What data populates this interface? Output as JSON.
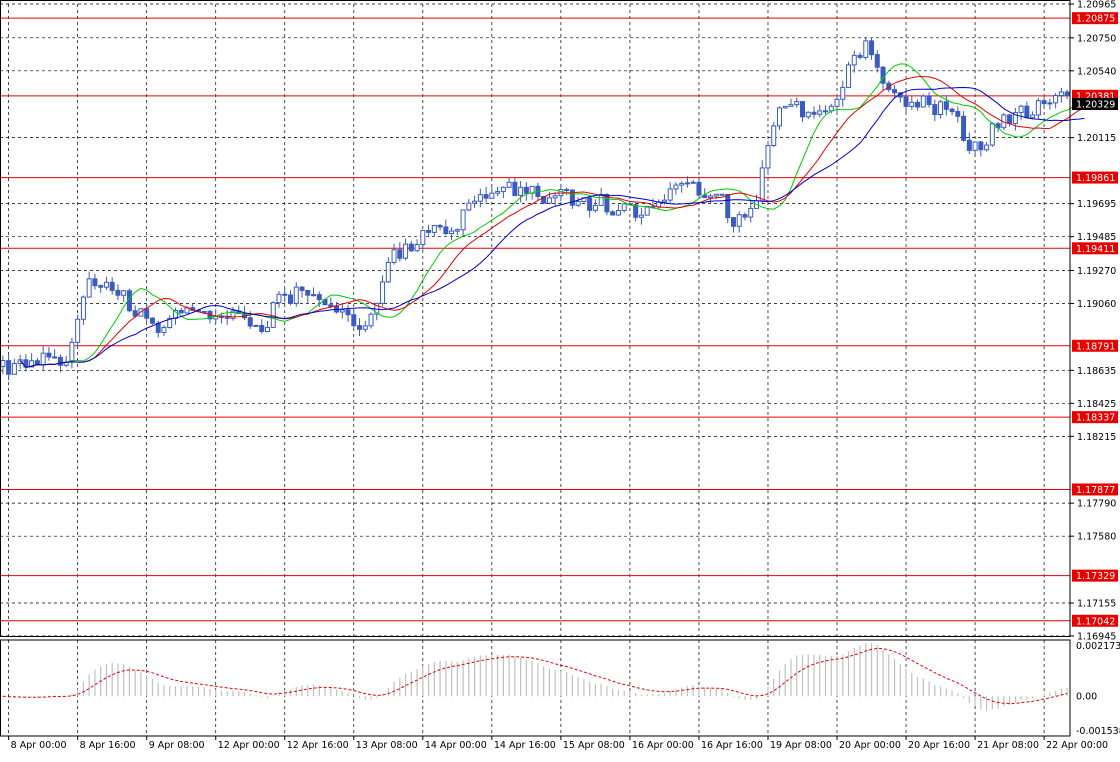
{
  "chart_data": {
    "type": "candlestick",
    "instrument": "",
    "colors": {
      "background": "#ffffff",
      "grid": "#000000",
      "candle": "#3a5bbf",
      "level_line": "#e60000",
      "ma_fast": "#00cc00",
      "ma_mid": "#e60000",
      "ma_slow": "#0000cc",
      "osc_hist": "#c0c0c0",
      "osc_signal": "#e60000",
      "price_label_bg": "#e60000",
      "current_label_bg": "#000000"
    },
    "price_axis": {
      "ylim": [
        1.16945,
        1.20965
      ],
      "tick_labels": [
        "1.20965",
        "1.20750",
        "1.20540",
        "1.20115",
        "1.19695",
        "1.19485",
        "1.19270",
        "1.19060",
        "1.18635",
        "1.18425",
        "1.18215",
        "1.17790",
        "1.17580",
        "1.17155",
        "1.16945"
      ],
      "tick_values": [
        1.20965,
        1.2075,
        1.2054,
        1.20115,
        1.19695,
        1.19485,
        1.1927,
        1.1906,
        1.18635,
        1.18425,
        1.18215,
        1.1779,
        1.1758,
        1.17155,
        1.16945
      ]
    },
    "levels": [
      {
        "label": "1.20875",
        "value": 1.20875
      },
      {
        "label": "1.20381",
        "value": 1.20381
      },
      {
        "label": "1.19861",
        "value": 1.19861
      },
      {
        "label": "1.19411",
        "value": 1.19411
      },
      {
        "label": "1.18791",
        "value": 1.18791
      },
      {
        "label": "1.18337",
        "value": 1.18337
      },
      {
        "label": "1.17877",
        "value": 1.17877
      },
      {
        "label": "1.17329",
        "value": 1.17329
      },
      {
        "label": "1.17042",
        "value": 1.17042
      }
    ],
    "current_price": {
      "label": "1.20329",
      "value": 1.20329
    },
    "x_axis": {
      "count": 186,
      "time_labels": [
        {
          "label": "8 Apr 00:00",
          "idx": 1
        },
        {
          "label": "8 Apr 16:00",
          "idx": 13
        },
        {
          "label": "9 Apr 08:00",
          "idx": 25
        },
        {
          "label": "12 Apr 00:00",
          "idx": 37
        },
        {
          "label": "12 Apr 16:00",
          "idx": 49
        },
        {
          "label": "13 Apr 08:00",
          "idx": 61
        },
        {
          "label": "14 Apr 00:00",
          "idx": 73
        },
        {
          "label": "14 Apr 16:00",
          "idx": 85
        },
        {
          "label": "15 Apr 08:00",
          "idx": 97
        },
        {
          "label": "16 Apr 00:00",
          "idx": 109
        },
        {
          "label": "16 Apr 16:00",
          "idx": 121
        },
        {
          "label": "19 Apr 08:00",
          "idx": 133
        },
        {
          "label": "20 Apr 00:00",
          "idx": 145
        },
        {
          "label": "20 Apr 16:00",
          "idx": 157
        },
        {
          "label": "21 Apr 08:00",
          "idx": 169
        },
        {
          "label": "22 Apr 00:00",
          "idx": 181
        }
      ]
    },
    "path_anchors": [
      [
        0,
        1.1866
      ],
      [
        4,
        1.1866
      ],
      [
        8,
        1.1872
      ],
      [
        11,
        1.1866
      ],
      [
        13,
        1.1898
      ],
      [
        15,
        1.1922
      ],
      [
        17,
        1.1915
      ],
      [
        20,
        1.1916
      ],
      [
        22,
        1.1905
      ],
      [
        25,
        1.1894
      ],
      [
        27,
        1.1888
      ],
      [
        30,
        1.1897
      ],
      [
        34,
        1.1901
      ],
      [
        38,
        1.1896
      ],
      [
        42,
        1.1897
      ],
      [
        45,
        1.1886
      ],
      [
        48,
        1.191
      ],
      [
        52,
        1.1913
      ],
      [
        55,
        1.1903
      ],
      [
        57,
        1.1908
      ],
      [
        60,
        1.1896
      ],
      [
        62,
        1.189
      ],
      [
        64,
        1.19
      ],
      [
        66,
        1.192
      ],
      [
        68,
        1.1935
      ],
      [
        71,
        1.1942
      ],
      [
        75,
        1.1954
      ],
      [
        79,
        1.1957
      ],
      [
        82,
        1.1968
      ],
      [
        85,
        1.1978
      ],
      [
        88,
        1.198
      ],
      [
        92,
        1.1978
      ],
      [
        95,
        1.1971
      ],
      [
        98,
        1.1975
      ],
      [
        101,
        1.1968
      ],
      [
        104,
        1.197
      ],
      [
        107,
        1.1966
      ],
      [
        110,
        1.1962
      ],
      [
        113,
        1.1968
      ],
      [
        116,
        1.1975
      ],
      [
        119,
        1.1979
      ],
      [
        122,
        1.1975
      ],
      [
        125,
        1.197
      ],
      [
        127,
        1.1952
      ],
      [
        129,
        1.1965
      ],
      [
        131,
        1.197
      ],
      [
        133,
        1.201
      ],
      [
        135,
        1.2035
      ],
      [
        138,
        1.203
      ],
      [
        141,
        1.203
      ],
      [
        144,
        1.2035
      ],
      [
        146,
        1.2045
      ],
      [
        148,
        1.2065
      ],
      [
        150,
        1.207
      ],
      [
        152,
        1.2055
      ],
      [
        155,
        1.204
      ],
      [
        157,
        1.203
      ],
      [
        160,
        1.2033
      ],
      [
        163,
        1.203
      ],
      [
        166,
        1.202
      ],
      [
        168,
        1.2005
      ],
      [
        171,
        1.2008
      ],
      [
        173,
        1.2022
      ],
      [
        176,
        1.2025
      ],
      [
        179,
        1.203
      ],
      [
        182,
        1.2033
      ],
      [
        184,
        1.204
      ],
      [
        186,
        1.2033
      ]
    ],
    "ma_periods": [
      8,
      13,
      21
    ],
    "oscillator": {
      "ylim": [
        -0.001538,
        0.002173
      ],
      "tick_labels": [
        "0.002173",
        "0.00",
        "-0.001538"
      ],
      "tick_values": [
        0.002173,
        0.0,
        -0.001538
      ]
    }
  }
}
